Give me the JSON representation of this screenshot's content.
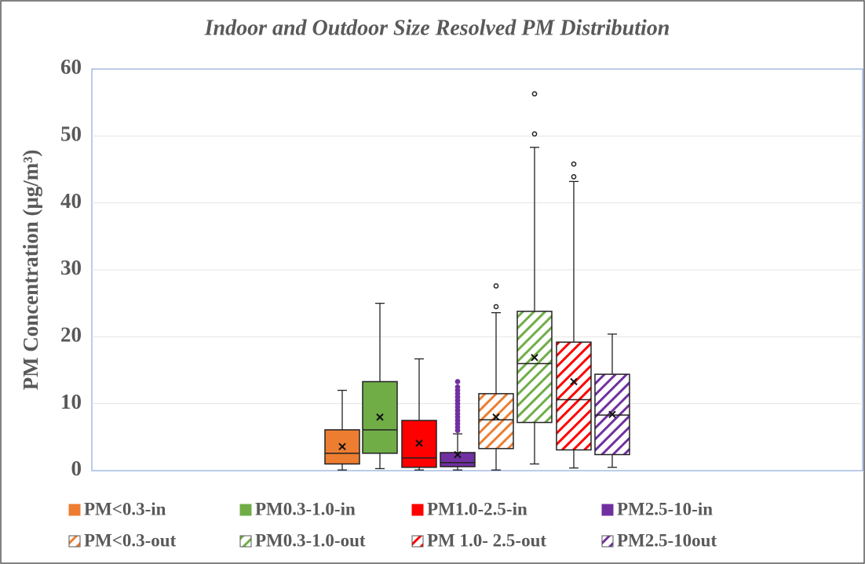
{
  "chart_data": {
    "type": "box",
    "title": "Indoor and Outdoor  Size Resolved PM Distribution",
    "ylabel": "PM Concentration (μg/m³)",
    "ylim": [
      0,
      60
    ],
    "yticks": [
      0,
      10,
      20,
      30,
      40,
      50,
      60
    ],
    "grid": true,
    "series": [
      {
        "name": "PM<0.3-in",
        "color": "#ed7d31",
        "pattern": "solid",
        "min": 0.1,
        "q1": 1.0,
        "median": 2.6,
        "q3": 6.1,
        "max": 12.0,
        "mean": 3.6,
        "outliers": []
      },
      {
        "name": "PM0.3-1.0-in",
        "color": "#70ad47",
        "pattern": "solid",
        "min": 0.3,
        "q1": 2.6,
        "median": 6.1,
        "q3": 13.3,
        "max": 25.0,
        "mean": 8.0,
        "outliers": []
      },
      {
        "name": "PM1.0-2.5-in",
        "color": "#ff0000",
        "pattern": "solid",
        "min": 0.1,
        "q1": 0.5,
        "median": 1.9,
        "q3": 7.5,
        "max": 16.7,
        "mean": 4.1,
        "outliers": []
      },
      {
        "name": "PM2.5-10-in",
        "color": "#7030a0",
        "pattern": "solid",
        "min": 0.1,
        "q1": 0.6,
        "median": 1.2,
        "q3": 2.7,
        "max": 5.5,
        "mean": 2.4,
        "outliers": [
          6.0,
          6.5,
          7.0,
          7.5,
          8.0,
          8.5,
          9.0,
          9.5,
          10.0,
          10.5,
          11.0,
          11.5,
          12.0,
          12.5,
          13.3
        ]
      },
      {
        "name": "PM<0.3-out",
        "color": "#ed7d31",
        "pattern": "hatch",
        "min": 0.1,
        "q1": 3.3,
        "median": 7.6,
        "q3": 11.5,
        "max": 23.6,
        "mean": 8.0,
        "outliers": [
          24.5,
          27.6
        ]
      },
      {
        "name": "PM0.3-1.0-out",
        "color": "#70ad47",
        "pattern": "hatch",
        "min": 1.0,
        "q1": 7.2,
        "median": 16.0,
        "q3": 23.8,
        "max": 48.3,
        "mean": 16.9,
        "outliers": [
          50.3,
          56.3
        ]
      },
      {
        "name": "PM 1.0- 2.5-out",
        "color": "#ff0000",
        "pattern": "hatch",
        "min": 0.4,
        "q1": 3.1,
        "median": 10.6,
        "q3": 19.2,
        "max": 43.2,
        "mean": 13.3,
        "outliers": [
          43.9,
          45.8
        ]
      },
      {
        "name": "PM2.5-10out",
        "color": "#7030a0",
        "pattern": "hatch",
        "min": 0.5,
        "q1": 2.4,
        "median": 8.3,
        "q3": 14.4,
        "max": 20.4,
        "mean": 8.4,
        "outliers": []
      }
    ]
  }
}
